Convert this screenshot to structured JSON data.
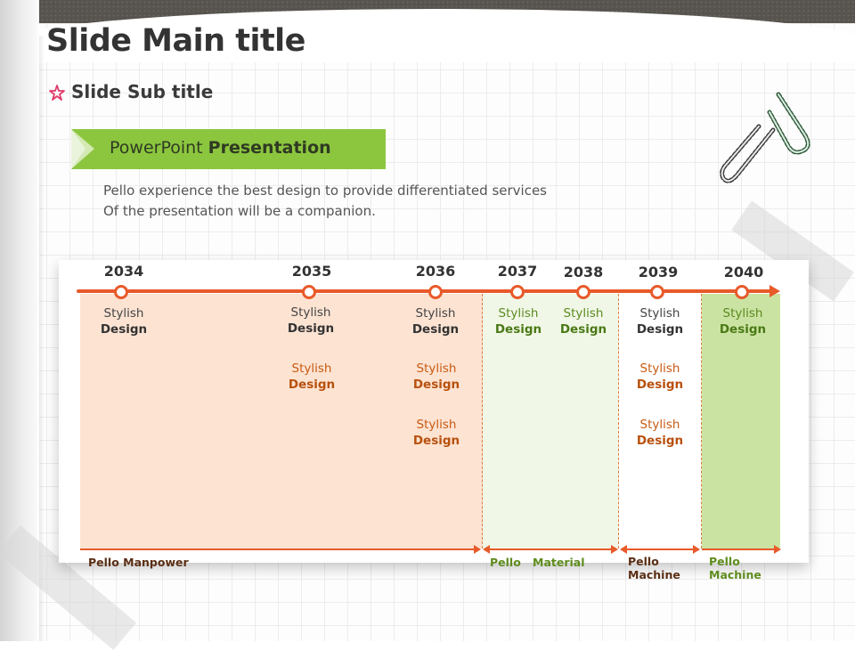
{
  "slide": {
    "title": "Slide Main title",
    "subtitle": "Slide Sub title",
    "banner": {
      "normal": "PowerPoint ",
      "bold": "Presentation"
    },
    "description": [
      "Pello experience the best design to provide differentiated services",
      "Of the presentation will be a companion."
    ]
  },
  "timeline": {
    "years": [
      "2034",
      "2035",
      "2036",
      "2037",
      "2038",
      "2039",
      "2040"
    ],
    "items": {
      "line1": "Stylish",
      "line2": "Design"
    },
    "groups": [
      {
        "label": "Pello Manpower"
      },
      {
        "label_a": "Pello",
        "label_b": "Material"
      },
      {
        "label_a": "Pello",
        "label_b": "Machine"
      },
      {
        "label_a": "Pello",
        "label_b": "Machine"
      }
    ]
  },
  "colors": {
    "accent_orange": "#e85a2a",
    "accent_green": "#8cc63f",
    "shade_orange": "#fde3d2",
    "shade_green": "#cbe3a2"
  },
  "icons": [
    "star-icon",
    "paperclip-icon"
  ]
}
